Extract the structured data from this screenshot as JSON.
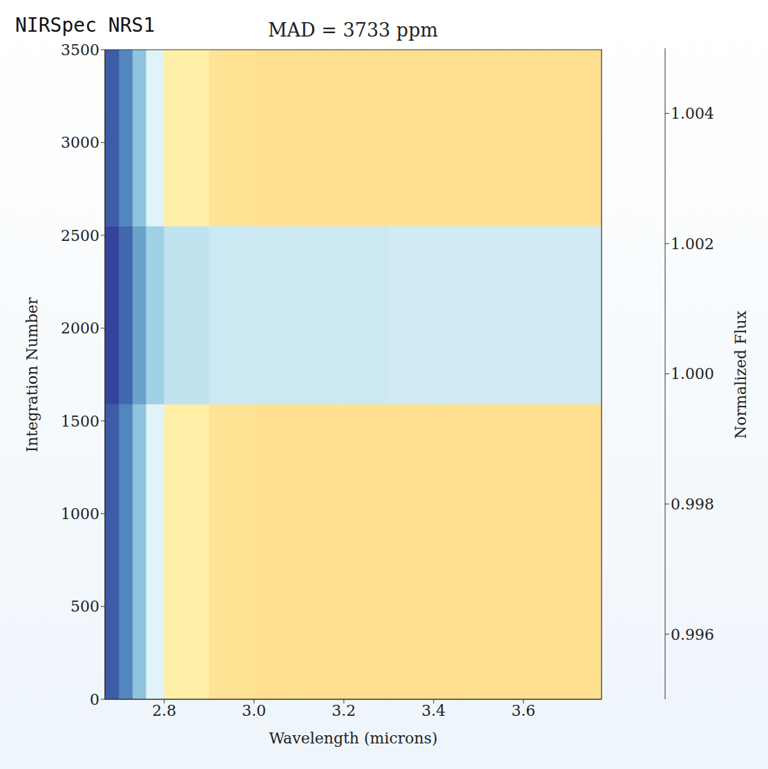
{
  "chart_data": {
    "type": "heatmap",
    "title": "MAD = 3733 ppm",
    "annotation": "NIRSpec NRS1",
    "x_label": "Wavelength (microns)",
    "y_label": "Integration Number",
    "xlim": [
      2.668,
      3.774
    ],
    "xticks": [
      2.8,
      {
        "value": 3.0,
        "label": "3.0"
      },
      3.2,
      3.4,
      3.6
    ],
    "ylim": [
      0,
      3500
    ],
    "yticks": [
      0,
      500,
      1000,
      1500,
      2000,
      2500,
      3000,
      3500
    ],
    "x_edges": [
      2.668,
      2.7,
      2.73,
      2.76,
      2.8,
      2.9,
      3.0,
      3.1,
      3.2,
      3.3,
      3.4,
      3.5,
      3.6,
      3.7,
      3.774
    ],
    "y_edges": [
      0,
      1590,
      2550,
      3500
    ],
    "cells": [
      [
        0.9956,
        0.9963,
        0.9975,
        0.999,
        1.0005,
        1.0009,
        1.001,
        1.001,
        1.001,
        1.001,
        1.001,
        1.001,
        1.001,
        1.001
      ],
      [
        0.9952,
        0.9958,
        0.9968,
        0.9978,
        0.9984,
        0.9986,
        0.9986,
        0.9986,
        0.9986,
        0.9987,
        0.9987,
        0.9987,
        0.9987,
        0.9987
      ],
      [
        0.9956,
        0.9963,
        0.9975,
        0.999,
        1.0005,
        1.0009,
        1.001,
        1.001,
        1.001,
        1.001,
        1.001,
        1.001,
        1.001,
        1.001
      ]
    ],
    "colorbar": {
      "label": "Normalized Flux",
      "range": [
        0.995,
        1.005
      ],
      "ticks": [
        0.996,
        0.998,
        {
          "value": 1,
          "label": "1.000"
        },
        1.002,
        1.004
      ]
    }
  }
}
